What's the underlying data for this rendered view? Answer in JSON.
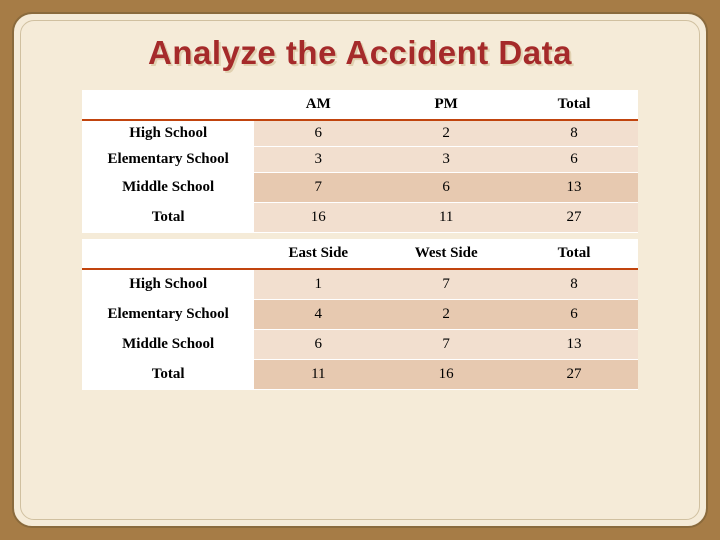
{
  "title": "Analyze the Accident Data",
  "colors": {
    "page_bg": "#a67c46",
    "panel_bg": "#f5ebd8",
    "title_color": "#a52a2a",
    "title_shadow": "#e0d0b0",
    "header_underline": "#c1440e",
    "row_bg": "#f2dfcf",
    "row_alt_bg": "#e7c9b0"
  },
  "table1": {
    "type": "table",
    "columns": [
      "",
      "AM",
      "PM",
      "Total"
    ],
    "rows": [
      [
        "High School",
        "6",
        "2",
        "8"
      ],
      [
        "Elementary School",
        "3",
        "3",
        "6"
      ],
      [
        "Middle School",
        "7",
        "6",
        "13"
      ],
      [
        "Total",
        "16",
        "11",
        "27"
      ]
    ]
  },
  "table2": {
    "type": "table",
    "columns": [
      "",
      "East Side",
      "West Side",
      "Total"
    ],
    "rows": [
      [
        "High School",
        "1",
        "7",
        "8"
      ],
      [
        "Elementary School",
        "4",
        "2",
        "6"
      ],
      [
        "Middle School",
        "6",
        "7",
        "13"
      ],
      [
        "Total",
        "11",
        "16",
        "27"
      ]
    ]
  }
}
